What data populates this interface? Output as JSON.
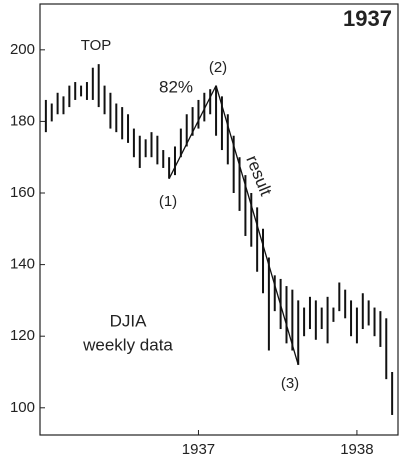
{
  "chart_data": {
    "type": "ohlc",
    "title": "1937",
    "high": [
      186,
      185,
      188,
      187,
      190,
      191,
      190,
      191,
      195,
      196,
      190,
      188,
      185,
      184,
      182,
      178,
      176,
      175,
      177,
      176,
      172,
      170,
      173,
      178,
      182,
      184,
      186,
      188,
      189,
      190,
      187,
      182,
      176,
      170,
      165,
      160,
      156,
      150,
      142,
      137,
      136,
      134,
      133,
      130,
      128,
      131,
      130,
      128,
      131,
      128,
      135,
      133,
      130,
      128,
      132,
      130,
      128,
      127,
      125,
      110
    ],
    "low": [
      177,
      180,
      182,
      182,
      184,
      186,
      187,
      186,
      186,
      184,
      182,
      178,
      177,
      175,
      174,
      170,
      167,
      170,
      170,
      168,
      167,
      164,
      165,
      170,
      173,
      176,
      178,
      180,
      182,
      176,
      172,
      168,
      160,
      155,
      148,
      145,
      138,
      132,
      116,
      127,
      122,
      118,
      116,
      112,
      120,
      122,
      119,
      122,
      118,
      124,
      127,
      125,
      120,
      118,
      122,
      123,
      120,
      117,
      108,
      98
    ],
    "categories": [
      null,
      null,
      null,
      null,
      null,
      null,
      null,
      null,
      null,
      null,
      null,
      null,
      null,
      null,
      null,
      null,
      null,
      null,
      null,
      null,
      null,
      null,
      null,
      null,
      null,
      null,
      null,
      null,
      null,
      null,
      null,
      null,
      null,
      null,
      null,
      null,
      null,
      null,
      null,
      null,
      null,
      null,
      null,
      null,
      null,
      null,
      null,
      null,
      null,
      null,
      null,
      null,
      null,
      null,
      null,
      null,
      null,
      null,
      null,
      null
    ],
    "xticks": [
      {
        "value": 26,
        "label": "1937"
      },
      {
        "value": 53,
        "label": "1938"
      }
    ],
    "ylim": [
      92.4,
      212.8
    ],
    "yticks": [
      100,
      120,
      140,
      160,
      180,
      200
    ],
    "color": "#111",
    "annotations": [
      "TOP",
      "82%",
      "(1)",
      "(2)",
      "(3)",
      "result",
      "DJIA",
      "weekly data"
    ]
  }
}
